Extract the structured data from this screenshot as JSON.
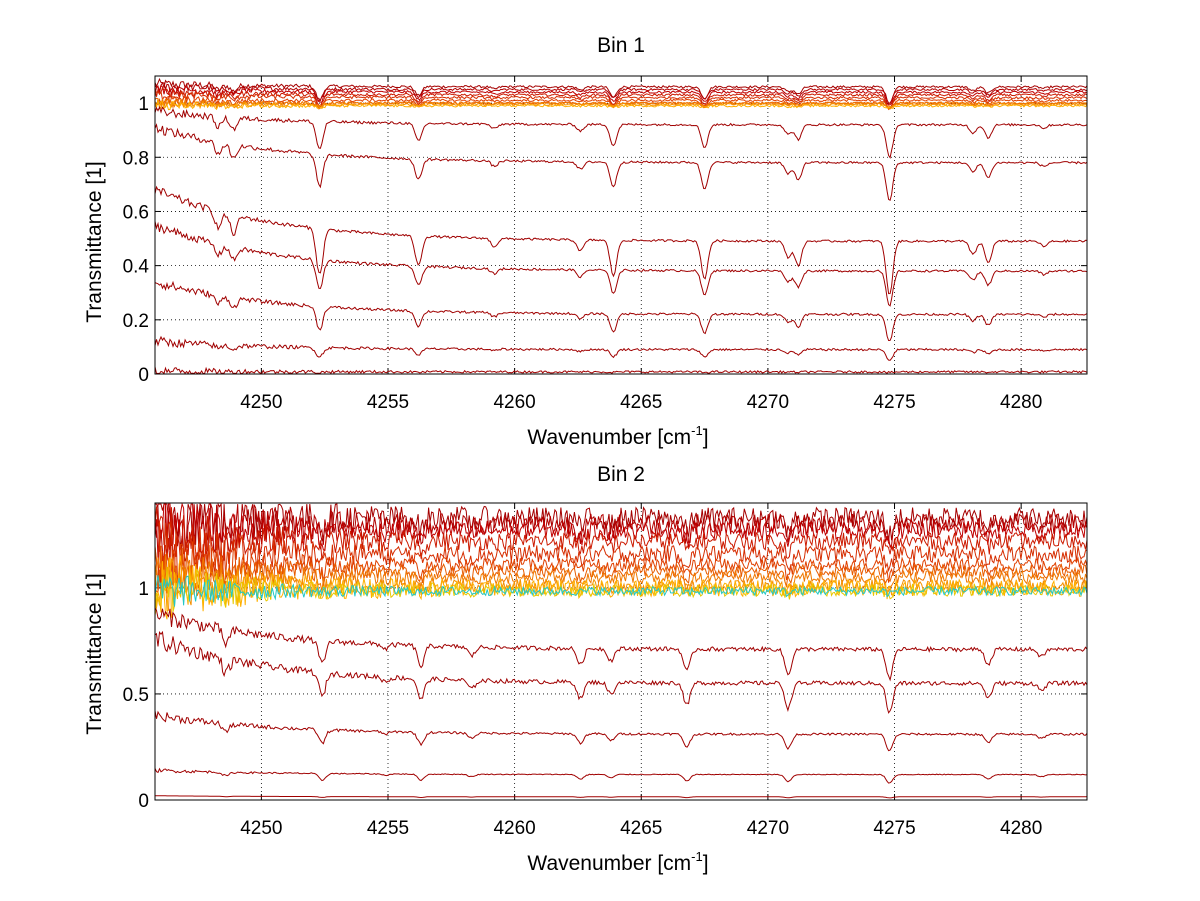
{
  "chart_data": [
    {
      "type": "line",
      "title": "Bin 1",
      "xlabel_main": "Wavenumber [cm",
      "xlabel_sup": "-1",
      "xlabel_end": "]",
      "ylabel": "Transmittance [1]",
      "xlim": [
        4245.8,
        4282.6
      ],
      "ylim": [
        0,
        1.1
      ],
      "x_ticks": [
        "4250",
        "4255",
        "4260",
        "4265",
        "4270",
        "4275",
        "4280"
      ],
      "x_tick_values": [
        4250,
        4255,
        4260,
        4265,
        4270,
        4275,
        4280
      ],
      "y_ticks": [
        "0",
        "0.2",
        "0.4",
        "0.6",
        "0.8",
        "1"
      ],
      "y_tick_values": [
        0,
        0.2,
        0.4,
        0.6,
        0.8,
        1.0
      ],
      "grid": true,
      "series_colors": [
        "#a50000",
        "#b30000",
        "#c00000",
        "#cc1a00",
        "#d62d00",
        "#e04000",
        "#e85c00",
        "#f07800",
        "#f59000",
        "#ffb000",
        "#e8c800",
        "#20c8c8"
      ],
      "absorption_lines": [
        {
          "x": 4248.3,
          "depth": 0.3
        },
        {
          "x": 4248.9,
          "depth": 0.35
        },
        {
          "x": 4252.3,
          "depth": 0.85
        },
        {
          "x": 4256.2,
          "depth": 0.55
        },
        {
          "x": 4259.2,
          "depth": 0.15
        },
        {
          "x": 4262.6,
          "depth": 0.2
        },
        {
          "x": 4263.9,
          "depth": 0.65
        },
        {
          "x": 4267.5,
          "depth": 0.7
        },
        {
          "x": 4270.8,
          "depth": 0.3
        },
        {
          "x": 4271.2,
          "depth": 0.45
        },
        {
          "x": 4274.8,
          "depth": 1.0
        },
        {
          "x": 4278.1,
          "depth": 0.25
        },
        {
          "x": 4278.7,
          "depth": 0.4
        },
        {
          "x": 4280.9,
          "depth": 0.1
        }
      ],
      "series": [
        {
          "level_start": 1.07,
          "level_end": 1.06,
          "depth": 0.06
        },
        {
          "level_start": 1.06,
          "level_end": 1.05,
          "depth": 0.05
        },
        {
          "level_start": 1.05,
          "level_end": 1.04,
          "depth": 0.05
        },
        {
          "level_start": 1.04,
          "level_end": 1.03,
          "depth": 0.05
        },
        {
          "level_start": 1.03,
          "level_end": 1.02,
          "depth": 0.04
        },
        {
          "level_start": 1.01,
          "level_end": 1.01,
          "depth": 0.03
        },
        {
          "level_start": 1.0,
          "level_end": 1.0,
          "depth": 0.02
        },
        {
          "level_start": 1.0,
          "level_end": 1.0,
          "depth": 0.015
        },
        {
          "level_start": 0.995,
          "level_end": 0.995,
          "depth": 0.01
        },
        {
          "level_start": 0.99,
          "level_end": 0.99,
          "depth": 0.01
        },
        {
          "level_start": 0.97,
          "level_end": 0.92,
          "depth": 0.12
        },
        {
          "level_start": 0.91,
          "level_end": 0.78,
          "depth": 0.14
        },
        {
          "level_start": 0.68,
          "level_end": 0.49,
          "depth": 0.2
        },
        {
          "level_start": 0.55,
          "level_end": 0.38,
          "depth": 0.13
        },
        {
          "level_start": 0.34,
          "level_end": 0.22,
          "depth": 0.1
        },
        {
          "level_start": 0.12,
          "level_end": 0.09,
          "depth": 0.04
        },
        {
          "level_start": 0.01,
          "level_end": 0.008,
          "depth": 0.003
        }
      ]
    },
    {
      "type": "line",
      "title": "Bin 2",
      "xlabel_main": "Wavenumber [cm",
      "xlabel_sup": "-1",
      "xlabel_end": "]",
      "ylabel": "Transmittance [1]",
      "xlim": [
        4245.8,
        4282.6
      ],
      "ylim": [
        0,
        1.4
      ],
      "x_ticks": [
        "4250",
        "4255",
        "4260",
        "4265",
        "4270",
        "4275",
        "4280"
      ],
      "x_tick_values": [
        4250,
        4255,
        4260,
        4265,
        4270,
        4275,
        4280
      ],
      "y_ticks": [
        "0",
        "0.5",
        "1"
      ],
      "y_tick_values": [
        0,
        0.5,
        1.0
      ],
      "grid": true,
      "series_colors": [
        "#a50000",
        "#b30000",
        "#c00000",
        "#cc1a00",
        "#d62d00",
        "#e04000",
        "#e85c00",
        "#f07800",
        "#f59000",
        "#ffb000",
        "#e8c800",
        "#20c8c8"
      ],
      "absorption_lines": [
        {
          "x": 4248.6,
          "depth": 0.45
        },
        {
          "x": 4252.4,
          "depth": 0.8
        },
        {
          "x": 4254.9,
          "depth": 0.15
        },
        {
          "x": 4256.3,
          "depth": 0.7
        },
        {
          "x": 4258.3,
          "depth": 0.3
        },
        {
          "x": 4262.6,
          "depth": 0.55
        },
        {
          "x": 4263.8,
          "depth": 0.4
        },
        {
          "x": 4266.8,
          "depth": 0.75
        },
        {
          "x": 4270.8,
          "depth": 0.85
        },
        {
          "x": 4274.8,
          "depth": 1.0
        },
        {
          "x": 4278.7,
          "depth": 0.5
        },
        {
          "x": 4280.8,
          "depth": 0.25
        }
      ],
      "series": [
        {
          "level_start": 1.34,
          "level_end": 1.33,
          "depth": 0.08,
          "noise": 0.05
        },
        {
          "level_start": 1.31,
          "level_end": 1.3,
          "depth": 0.08,
          "noise": 0.05
        },
        {
          "level_start": 1.27,
          "level_end": 1.27,
          "depth": 0.07,
          "noise": 0.04
        },
        {
          "level_start": 1.22,
          "level_end": 1.22,
          "depth": 0.06,
          "noise": 0.04
        },
        {
          "level_start": 1.16,
          "level_end": 1.16,
          "depth": 0.06,
          "noise": 0.04
        },
        {
          "level_start": 1.12,
          "level_end": 1.11,
          "depth": 0.06,
          "noise": 0.03
        },
        {
          "level_start": 1.08,
          "level_end": 1.08,
          "depth": 0.06,
          "noise": 0.03
        },
        {
          "level_start": 1.05,
          "level_end": 1.05,
          "depth": 0.05,
          "noise": 0.03
        },
        {
          "level_start": 1.02,
          "level_end": 1.01,
          "depth": 0.03,
          "noise": 0.03
        },
        {
          "level_start": 1.0,
          "level_end": 1.0,
          "depth": 0.02,
          "noise": 0.04
        },
        {
          "level_start": 0.99,
          "level_end": 0.99,
          "depth": 0.02,
          "noise": 0.03
        },
        {
          "level_start": 0.985,
          "level_end": 0.985,
          "depth": 0.01,
          "noise": 0.02
        },
        {
          "level_start": 0.88,
          "level_end": 0.71,
          "depth": 0.14,
          "noise": 0.01
        },
        {
          "level_start": 0.76,
          "level_end": 0.55,
          "depth": 0.14,
          "noise": 0.01
        },
        {
          "level_start": 0.4,
          "level_end": 0.31,
          "depth": 0.08,
          "noise": 0.005
        },
        {
          "level_start": 0.14,
          "level_end": 0.12,
          "depth": 0.04,
          "noise": 0.002
        },
        {
          "level_start": 0.02,
          "level_end": 0.015,
          "depth": 0.005,
          "noise": 0.0
        }
      ]
    }
  ]
}
